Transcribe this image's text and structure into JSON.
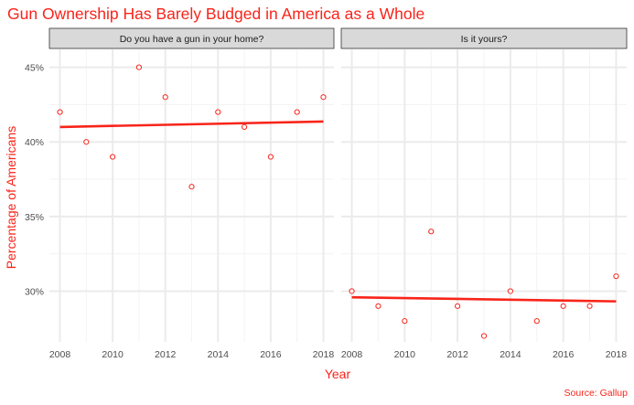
{
  "chart_data": {
    "type": "scatter",
    "title": "Gun Ownership Has Barely Budged in America as a Whole",
    "xlabel": "Year",
    "ylabel": "Percentage of Americans",
    "caption": "Source: Gallup",
    "accent_color": "#f8241a",
    "x_ticks": [
      2008,
      2010,
      2012,
      2014,
      2016,
      2018
    ],
    "y_ticks": [
      30,
      35,
      40,
      45
    ],
    "y_tick_labels": [
      "30%",
      "35%",
      "40%",
      "45%"
    ],
    "xlim": [
      2007.6,
      2018.4
    ],
    "ylim": [
      26.6,
      46.2
    ],
    "grid": true,
    "trend_line": "linear fit",
    "facets": [
      {
        "label": "Do you have a gun in your home?",
        "x": [
          2008,
          2009,
          2010,
          2011,
          2012,
          2013,
          2014,
          2015,
          2016,
          2017,
          2018
        ],
        "y": [
          42,
          40,
          39,
          45,
          43,
          37,
          42,
          41,
          39,
          42,
          43
        ]
      },
      {
        "label": "Is it yours?",
        "x": [
          2008,
          2009,
          2010,
          2011,
          2012,
          2013,
          2014,
          2015,
          2016,
          2017,
          2018
        ],
        "y": [
          30,
          29,
          28,
          34,
          29,
          27,
          30,
          28,
          29,
          29,
          31
        ]
      }
    ]
  }
}
